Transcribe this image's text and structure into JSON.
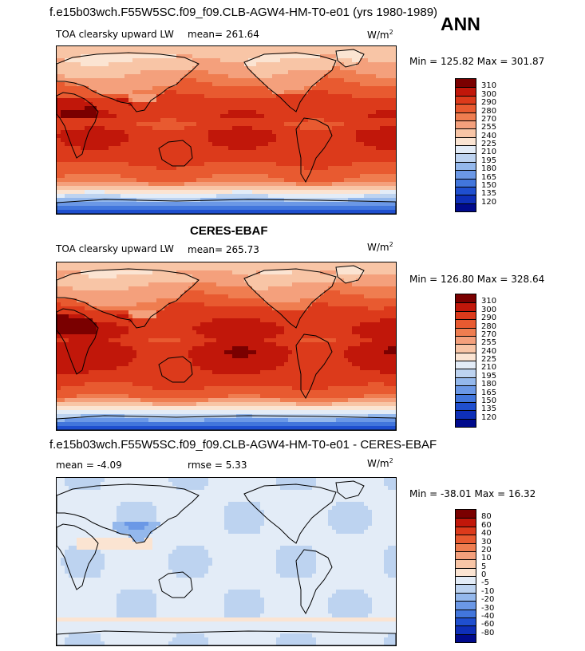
{
  "header": {
    "title": "f.e15b03wch.F55W5SC.f09_f09.CLB-AGW4-HM-T0-e01 (yrs 1980-1989)",
    "season": "ANN"
  },
  "panels": [
    {
      "variable": "TOA clearsky upward LW",
      "mean_label": "mean= 261.64",
      "units": "W/m",
      "units_sup": "2",
      "minmax": "Min = 125.82 Max = 301.87",
      "levels": [
        "310",
        "300",
        "290",
        "280",
        "270",
        "255",
        "240",
        "225",
        "210",
        "195",
        "180",
        "165",
        "150",
        "135",
        "120"
      ],
      "colors": [
        "#7a0000",
        "#c1170a",
        "#dc3a1b",
        "#e85a30",
        "#ef7d50",
        "#f4a07c",
        "#f8c5a6",
        "#fbe4d2",
        "#e3ecf7",
        "#bdd3f0",
        "#94b8ec",
        "#6b98e6",
        "#4276dc",
        "#1f4fcf",
        "#0e2fb8",
        "#000a8c"
      ],
      "field": "model"
    },
    {
      "center_title": "CERES-EBAF",
      "variable": "TOA clearsky upward LW",
      "mean_label": "mean= 265.73",
      "units": "W/m",
      "units_sup": "2",
      "minmax": "Min = 126.80 Max = 328.64",
      "levels": [
        "310",
        "300",
        "290",
        "280",
        "270",
        "255",
        "240",
        "225",
        "210",
        "195",
        "180",
        "165",
        "150",
        "135",
        "120"
      ],
      "colors": [
        "#7a0000",
        "#c1170a",
        "#dc3a1b",
        "#e85a30",
        "#ef7d50",
        "#f4a07c",
        "#f8c5a6",
        "#fbe4d2",
        "#e3ecf7",
        "#bdd3f0",
        "#94b8ec",
        "#6b98e6",
        "#4276dc",
        "#1f4fcf",
        "#0e2fb8",
        "#000a8c"
      ],
      "field": "obs"
    },
    {
      "title": "f.e15b03wch.F55W5SC.f09_f09.CLB-AGW4-HM-T0-e01 - CERES-EBAF",
      "mean_label": "mean =   -4.09",
      "rmse_label": "rmse =    5.33",
      "units": "W/m",
      "units_sup": "2",
      "minmax": "Min = -38.01 Max =  16.32",
      "levels": [
        "80",
        "60",
        "40",
        "30",
        "20",
        "10",
        "5",
        "0",
        "-5",
        "-10",
        "-20",
        "-30",
        "-40",
        "-60",
        "-80"
      ],
      "colors": [
        "#7a0000",
        "#c1170a",
        "#dc3a1b",
        "#e85a30",
        "#ef7d50",
        "#f4a07c",
        "#f8c5a6",
        "#fbe4d2",
        "#e3ecf7",
        "#bdd3f0",
        "#94b8ec",
        "#6b98e6",
        "#4276dc",
        "#1f4fcf",
        "#0e2fb8",
        "#000a8c"
      ],
      "field": "diff"
    }
  ]
}
